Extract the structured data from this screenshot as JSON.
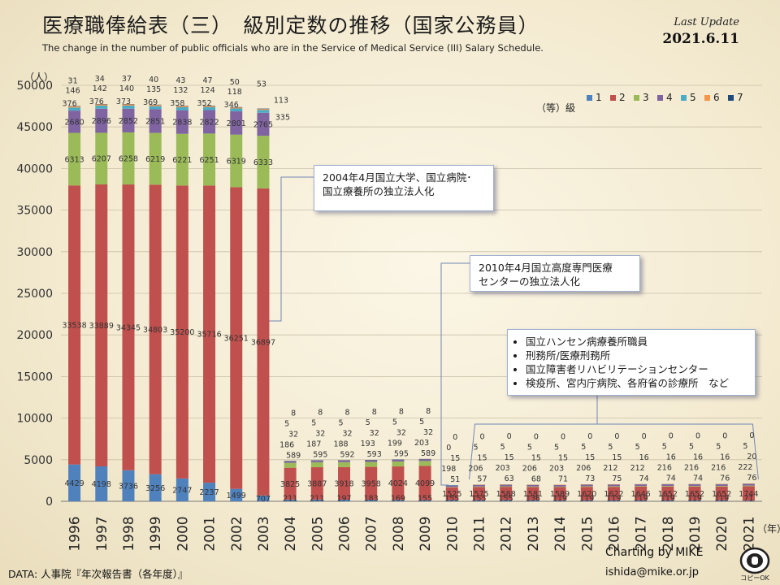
{
  "title": "医療職俸給表（三）　級別定数の推移（国家公務員）",
  "subtitle": "The change in the number of public officials who are in the Service of Medical Service (III) Salary Schedule.",
  "last_update_label": "Last Update",
  "last_update_date": "2021.6.11",
  "y_unit": "（人）",
  "x_unit": "（年）",
  "legend_title": "（等）級",
  "source": "DATA: 人事院『年次報告書（各年度）』",
  "credit_line1": "Charting by MIKE",
  "credit_line2": "ishida@mike.or.jp",
  "logo_text": "コピーOK",
  "notes": {
    "note1": [
      "2004年4月国立大学、国立病院･",
      "国立療養所の独立法人化"
    ],
    "note2": [
      "2010年4月国立高度専門医療",
      "センターの独立法人化"
    ],
    "note3": [
      "国立ハンセン病療養所職員",
      "刑務所/医療刑務所",
      "国立障害者リハビリテーションセンター",
      "検疫所、宮内庁病院、各府省の診療所　など"
    ]
  },
  "chart_data": {
    "type": "bar",
    "stacked": true,
    "categories": [
      "1996",
      "1997",
      "1998",
      "1999",
      "2000",
      "2001",
      "2002",
      "2003",
      "2004",
      "2005",
      "2006",
      "2007",
      "2008",
      "2009",
      "2010",
      "2011",
      "2012",
      "2013",
      "2014",
      "2015",
      "2016",
      "2017",
      "2018",
      "2019",
      "2020",
      "2021"
    ],
    "ylim": [
      0,
      50000
    ],
    "yticks": [
      0,
      5000,
      10000,
      15000,
      20000,
      25000,
      30000,
      35000,
      40000,
      45000,
      50000
    ],
    "grid": true,
    "legend_position": "top-right",
    "series": [
      {
        "name": "1",
        "color": "#4f81bd",
        "values": [
          4429,
          4198,
          3736,
          3256,
          2747,
          2237,
          1499,
          707,
          211,
          211,
          197,
          183,
          169,
          155,
          155,
          155,
          155,
          136,
          119,
          119,
          119,
          119,
          119,
          119,
          119,
          71
        ]
      },
      {
        "name": "2",
        "color": "#c0504d",
        "values": [
          33538,
          33889,
          34345,
          34803,
          35200,
          35716,
          36251,
          36897,
          3825,
          3887,
          3918,
          3958,
          4024,
          4099,
          1525,
          1575,
          1588,
          1581,
          1589,
          1620,
          1622,
          1646,
          1652,
          1652,
          1652,
          1744
        ]
      },
      {
        "name": "3",
        "color": "#9bbb59",
        "values": [
          6313,
          6207,
          6258,
          6219,
          6221,
          6251,
          6319,
          6333,
          589,
          595,
          592,
          593,
          595,
          589,
          51,
          57,
          63,
          68,
          71,
          73,
          75,
          74,
          74,
          74,
          76,
          76
        ]
      },
      {
        "name": "4",
        "color": "#8064a2",
        "values": [
          2680,
          2896,
          2852,
          2851,
          2838,
          2822,
          2801,
          2765,
          186,
          187,
          188,
          193,
          199,
          203,
          198,
          206,
          203,
          206,
          203,
          206,
          212,
          212,
          216,
          216,
          216,
          222
        ]
      },
      {
        "name": "5",
        "color": "#4bacc6",
        "values": [
          376,
          376,
          373,
          369,
          358,
          352,
          346,
          335,
          32,
          32,
          32,
          32,
          32,
          32,
          15,
          15,
          15,
          15,
          15,
          15,
          15,
          16,
          16,
          16,
          16,
          20
        ]
      },
      {
        "name": "6",
        "color": "#f79646",
        "values": [
          146,
          142,
          140,
          135,
          132,
          124,
          118,
          113,
          5,
          5,
          5,
          5,
          5,
          5,
          0,
          5,
          5,
          5,
          5,
          5,
          5,
          5,
          5,
          5,
          5,
          5
        ]
      },
      {
        "name": "7",
        "color": "#1f497d",
        "values": [
          31,
          34,
          37,
          40,
          43,
          47,
          50,
          53,
          8,
          8,
          8,
          8,
          8,
          8,
          0,
          0,
          0,
          0,
          0,
          0,
          0,
          0,
          0,
          0,
          0,
          0
        ]
      }
    ]
  }
}
